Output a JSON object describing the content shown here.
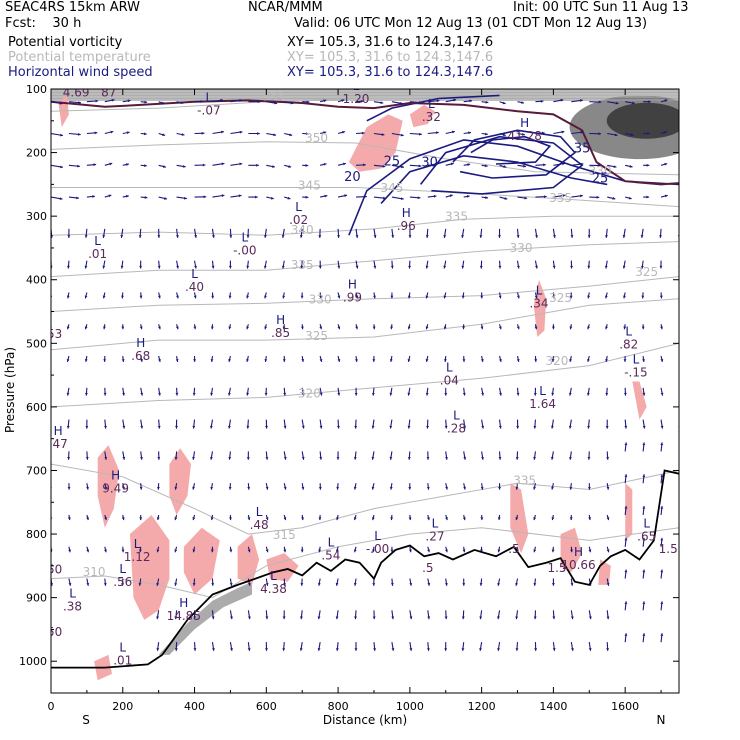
{
  "header": {
    "model": "SEAC4RS 15km ARW",
    "forecast": "Fcst:    30 h",
    "center": "NCAR/MMM",
    "init": "Init: 00 UTC Sun 11 Aug 13",
    "valid": "Valid: 06 UTC Mon 12 Aug 13 (01 CDT Mon 12 Aug 13)"
  },
  "legend": [
    {
      "label": "Potential vorticity",
      "xy": "XY= 105.3, 31.6 to 124.3,147.6",
      "color": "#000000"
    },
    {
      "label": "Potential temperature",
      "xy": "XY= 105.3, 31.6 to 124.3,147.6",
      "color": "#b8b8b8"
    },
    {
      "label": "Horizontal wind speed",
      "xy": "XY= 105.3, 31.6 to 124.3,147.6",
      "color": "#1a1a80"
    }
  ],
  "chart_data": {
    "type": "cross-section",
    "xlabel": "Distance (km)",
    "ylabel": "Pressure (hPa)",
    "xlim": [
      0,
      1750
    ],
    "ylim": [
      1050,
      100
    ],
    "xticks": [
      0,
      200,
      400,
      600,
      800,
      1000,
      1200,
      1400,
      1600
    ],
    "yticks": [
      100,
      200,
      300,
      400,
      500,
      600,
      700,
      800,
      900,
      1000
    ],
    "end_labels": {
      "left": "S",
      "right": "N"
    },
    "colors": {
      "pv_shade": "#f4aaaa",
      "theta": "#b8b8b8",
      "wind": "#1a1a80",
      "pv_label": "#5a2a5a",
      "terrain": "#000000",
      "high_pv_gray": "#808080"
    },
    "theta_contours": [
      {
        "value": "355",
        "x": 620,
        "p": 118
      },
      {
        "value": "350",
        "x": 740,
        "p": 183
      },
      {
        "value": "345",
        "x": 720,
        "p": 258
      },
      {
        "value": "340",
        "x": 700,
        "p": 328
      },
      {
        "value": "335",
        "x": 700,
        "p": 383
      },
      {
        "value": "330",
        "x": 750,
        "p": 437
      },
      {
        "value": "325",
        "x": 740,
        "p": 495
      },
      {
        "value": "320",
        "x": 720,
        "p": 585
      },
      {
        "value": "315",
        "x": 650,
        "p": 808
      },
      {
        "value": "310",
        "x": 120,
        "p": 866
      },
      {
        "value": "345",
        "x": 950,
        "p": 262
      },
      {
        "value": "335",
        "x": 1130,
        "p": 307
      },
      {
        "value": "330",
        "x": 1310,
        "p": 356
      },
      {
        "value": "325",
        "x": 1420,
        "p": 435
      },
      {
        "value": "320",
        "x": 1410,
        "p": 534
      },
      {
        "value": "335",
        "x": 1320,
        "p": 722
      },
      {
        "value": "330",
        "x": 1530,
        "p": 235
      },
      {
        "value": "335",
        "x": 1420,
        "p": 278
      },
      {
        "value": "325",
        "x": 1660,
        "p": 394
      }
    ],
    "wind_contours": [
      {
        "value": "20",
        "x": 840,
        "p": 245
      },
      {
        "value": "25",
        "x": 950,
        "p": 220
      },
      {
        "value": "30",
        "x": 1055,
        "p": 222
      },
      {
        "value": "35",
        "x": 1480,
        "p": 200
      },
      {
        "value": "25",
        "x": 1530,
        "p": 247
      }
    ],
    "extrema": [
      {
        "kind": "L",
        "value": "4.69",
        "x": 70,
        "p": 112,
        "sub": "87"
      },
      {
        "kind": "L",
        "value": "-.07",
        "x": 440,
        "p": 140
      },
      {
        "kind": "L",
        "value": "1.20",
        "x": 850,
        "p": 122
      },
      {
        "kind": "L",
        "value": ".32",
        "x": 1060,
        "p": 150
      },
      {
        "kind": "H",
        "value": "41.28",
        "x": 1320,
        "p": 180
      },
      {
        "kind": "L",
        "value": ".02",
        "x": 690,
        "p": 312
      },
      {
        "kind": "H",
        "value": ".96",
        "x": 990,
        "p": 322
      },
      {
        "kind": "L",
        "value": ".01",
        "x": 130,
        "p": 366
      },
      {
        "kind": "L",
        "value": "-.00",
        "x": 540,
        "p": 360
      },
      {
        "kind": "L",
        "value": ".40",
        "x": 400,
        "p": 418
      },
      {
        "kind": "H",
        "value": ".99",
        "x": 840,
        "p": 434
      },
      {
        "kind": "L",
        "value": ".34",
        "x": 1360,
        "p": 444
      },
      {
        "kind": "H",
        "value": ".85",
        "x": 640,
        "p": 490
      },
      {
        "kind": "H",
        "value": ".68",
        "x": 250,
        "p": 526
      },
      {
        "kind": "L",
        "value": ".82",
        "x": 1610,
        "p": 508
      },
      {
        "kind": "L",
        "value": ".04",
        "x": 1110,
        "p": 565
      },
      {
        "kind": "L",
        "value": "-.15",
        "x": 1630,
        "p": 552
      },
      {
        "kind": "L",
        "value": "1.64",
        "x": 1370,
        "p": 602
      },
      {
        "kind": "L",
        "value": ".28",
        "x": 1130,
        "p": 640
      },
      {
        "kind": "H",
        "value": ".47",
        "x": 20,
        "p": 665
      },
      {
        "kind": "H",
        "value": "9.49",
        "x": 180,
        "p": 735
      },
      {
        "kind": "L",
        "value": ".48",
        "x": 580,
        "p": 792
      },
      {
        "kind": "L",
        "value": ".27",
        "x": 1070,
        "p": 810
      },
      {
        "kind": "L",
        "value": ".65",
        "x": 1660,
        "p": 810
      },
      {
        "kind": "L",
        "value": ".54",
        "x": 780,
        "p": 840
      },
      {
        "kind": "L",
        "value": "-.00",
        "x": 910,
        "p": 830
      },
      {
        "kind": "L",
        "value": "1.12",
        "x": 240,
        "p": 842
      },
      {
        "kind": "L",
        "value": ".56",
        "x": 200,
        "p": 882
      },
      {
        "kind": "H",
        "value": "10.66",
        "x": 1470,
        "p": 855
      },
      {
        "kind": "L",
        "value": "4.38",
        "x": 620,
        "p": 893
      },
      {
        "kind": "H",
        "value": "14.85",
        "x": 370,
        "p": 935
      },
      {
        "kind": "L",
        "value": ".38",
        "x": 60,
        "p": 920
      },
      {
        "kind": "L",
        "value": ".01",
        "x": 200,
        "p": 1005
      }
    ],
    "edge_values": [
      {
        "value": "53",
        "x": 10,
        "p": 492
      },
      {
        "value": "50",
        "x": 10,
        "p": 862
      },
      {
        "value": "50",
        "x": 10,
        "p": 960
      },
      {
        "value": "1.5",
        "x": 1720,
        "p": 830
      },
      {
        "value": ".5",
        "x": 1290,
        "p": 830
      },
      {
        "value": "1.5",
        "x": 1410,
        "p": 860
      },
      {
        "value": ".5",
        "x": 1050,
        "p": 860
      }
    ]
  }
}
